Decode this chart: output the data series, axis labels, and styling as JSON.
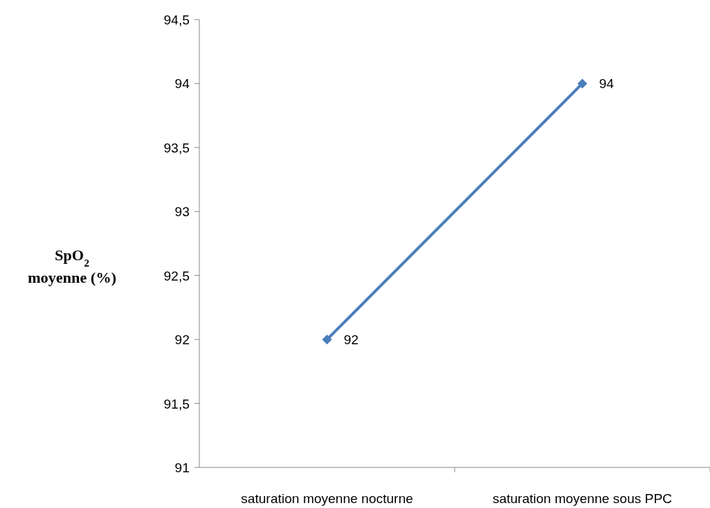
{
  "chart_data": {
    "type": "line",
    "ylabel": "SpO$_{2}$ moyenne (%)",
    "categories": [
      "saturation moyenne nocturne",
      "saturation moyenne sous PPC"
    ],
    "series": [
      {
        "color": "#4a7ebb",
        "values": [
          92,
          94
        ]
      }
    ],
    "ylim": [
      91,
      94.5
    ],
    "yticks": [
      91,
      {
        "value": 91.5,
        "label": "91,5"
      },
      92,
      {
        "value": 92.5,
        "label": "92,5"
      },
      93,
      {
        "value": 93.5,
        "label": "93,5"
      },
      94,
      {
        "value": 94.5,
        "label": "94,5"
      }
    ],
    "data_labels": true,
    "marker": "diamond",
    "line_style": "solid",
    "grid": false
  }
}
